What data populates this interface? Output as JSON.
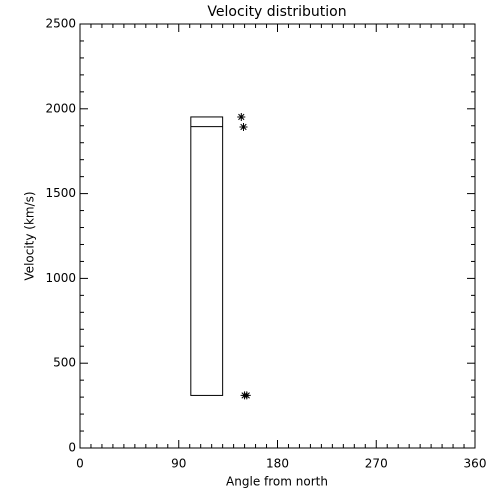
{
  "chart_data": {
    "type": "box",
    "title": "Velocity distribution",
    "x_label": "Angle from north",
    "y_label": "Velocity (km/s)",
    "xlim": [
      0,
      360
    ],
    "xticks": [
      0,
      90,
      180,
      270,
      360
    ],
    "ylim": [
      0,
      2500
    ],
    "yticks": [
      0,
      500,
      1000,
      1500,
      2000,
      2500
    ],
    "boxes": [
      {
        "x": [
          101,
          130
        ],
        "low": 310,
        "high": 1952,
        "lines": [
          1895
        ]
      }
    ],
    "points": {
      "x": [
        147,
        149,
        150,
        152
      ],
      "values": [
        1952,
        1893,
        310,
        310
      ]
    },
    "color": "#000000"
  }
}
